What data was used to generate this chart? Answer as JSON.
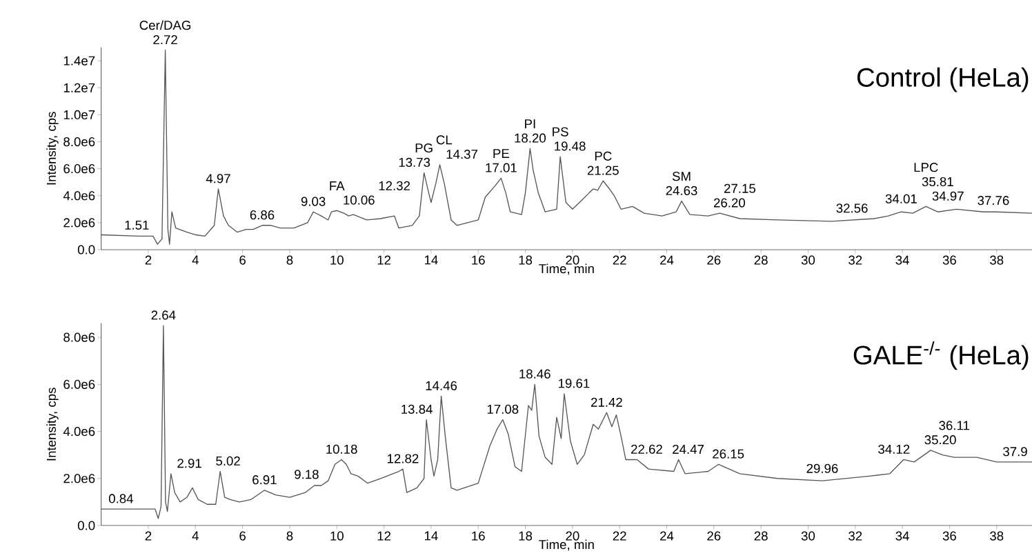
{
  "chart_data": [
    {
      "type": "line",
      "title": "Control (HeLa)",
      "xlabel": "Time, min",
      "ylabel": "Intensity, cps",
      "marker": "none",
      "xlim": [
        0,
        39.5
      ],
      "ylim": [
        0,
        15000000
      ],
      "xticks": [
        2,
        4,
        6,
        8,
        10,
        12,
        14,
        16,
        18,
        20,
        22,
        24,
        26,
        28,
        30,
        32,
        34,
        36,
        38
      ],
      "yticks": [
        {
          "value": 0,
          "label": "0.0"
        },
        {
          "value": 2000000,
          "label": "2.0e6"
        },
        {
          "value": 4000000,
          "label": "4.0e6"
        },
        {
          "value": 6000000,
          "label": "6.0e6"
        },
        {
          "value": 8000000,
          "label": "8.0e6"
        },
        {
          "value": 10000000,
          "label": "1.0e7"
        },
        {
          "value": 12000000,
          "label": "1.2e7"
        },
        {
          "value": 14000000,
          "label": "1.4e7"
        }
      ],
      "series": [
        {
          "color": "#555555",
          "x": [
            0,
            1.6,
            2.2,
            2.39,
            2.58,
            2.72,
            2.83,
            2.9,
            3.0,
            3.16,
            3.64,
            4.0,
            4.4,
            4.8,
            4.97,
            5.19,
            5.4,
            5.77,
            6.15,
            6.45,
            6.83,
            7.2,
            7.6,
            8.18,
            8.76,
            9.0,
            9.34,
            9.63,
            9.77,
            10.0,
            10.3,
            10.5,
            10.7,
            11.27,
            11.86,
            12.44,
            12.63,
            13.2,
            13.5,
            13.7,
            13.9,
            14.0,
            14.2,
            14.37,
            14.56,
            14.85,
            15.1,
            16.0,
            16.3,
            16.7,
            16.97,
            17.17,
            17.36,
            17.84,
            18.0,
            18.2,
            18.33,
            18.55,
            18.84,
            19.33,
            19.48,
            19.72,
            20.0,
            20.3,
            20.7,
            20.88,
            21.07,
            21.3,
            21.57,
            21.77,
            22.06,
            22.55,
            23.04,
            23.8,
            24.4,
            24.63,
            24.98,
            25.76,
            26.25,
            27.1,
            28.7,
            31.0,
            32.8,
            33.4,
            33.95,
            34.44,
            35.0,
            35.5,
            36.3,
            37.45,
            38.0,
            39.5
          ],
          "values": [
            1100000,
            1000000,
            1000000,
            400000,
            800000,
            14800000,
            1500000,
            400000,
            2800000,
            1600000,
            1300000,
            1100000,
            1000000,
            1800000,
            4500000,
            2500000,
            1800000,
            1300000,
            1500000,
            1500000,
            1800000,
            1800000,
            1600000,
            1600000,
            2000000,
            2800000,
            2500000,
            2200000,
            2800000,
            2900000,
            2700000,
            2500000,
            2600000,
            2200000,
            2300000,
            2500000,
            1600000,
            1800000,
            2500000,
            5700000,
            4200000,
            3500000,
            4900000,
            6300000,
            4900000,
            2200000,
            1800000,
            2200000,
            3900000,
            4700000,
            5300000,
            4200000,
            2800000,
            2600000,
            4200000,
            7500000,
            5900000,
            4200000,
            2800000,
            3000000,
            6900000,
            3500000,
            3000000,
            3500000,
            4200000,
            4500000,
            4400000,
            5100000,
            4500000,
            4000000,
            3000000,
            3200000,
            2700000,
            2500000,
            2800000,
            3600000,
            2600000,
            2500000,
            2700000,
            2300000,
            2200000,
            2100000,
            2300000,
            2500000,
            2800000,
            2700000,
            3200000,
            2800000,
            3000000,
            2800000,
            2800000,
            2700000
          ]
        }
      ],
      "annotations": [
        {
          "text": "1.51",
          "x": 1.51,
          "y": 1000000
        },
        {
          "text": "2.72",
          "x": 2.72,
          "y": 14800000
        },
        {
          "text": "4.97",
          "x": 4.97,
          "y": 4500000
        },
        {
          "text": "6.86",
          "x": 6.83,
          "y": 1800000
        },
        {
          "text": "9.03",
          "x": 9.0,
          "y": 2800000
        },
        {
          "text": "10.06",
          "x": 10.0,
          "y": 2900000
        },
        {
          "text": "12.32",
          "x": 12.44,
          "y": 2500000
        },
        {
          "text": "13.73",
          "x": 13.7,
          "y": 5700000
        },
        {
          "text": "14.37",
          "x": 14.37,
          "y": 6300000
        },
        {
          "text": "17.01",
          "x": 16.97,
          "y": 5300000
        },
        {
          "text": "18.20",
          "x": 18.2,
          "y": 7500000
        },
        {
          "text": "19.48",
          "x": 19.48,
          "y": 6900000
        },
        {
          "text": "21.25",
          "x": 21.3,
          "y": 5100000
        },
        {
          "text": "24.63",
          "x": 24.63,
          "y": 3600000
        },
        {
          "text": "26.20",
          "x": 26.25,
          "y": 2700000
        },
        {
          "text": "27.15",
          "x": 27.1,
          "y": 2300000
        },
        {
          "text": "32.56",
          "x": 32.8,
          "y": 2300000
        },
        {
          "text": "34.01",
          "x": 33.95,
          "y": 2800000
        },
        {
          "text": "34.97",
          "x": 35.0,
          "y": 3200000
        },
        {
          "text": "35.81",
          "x": 35.5,
          "y": 2800000
        },
        {
          "text": "37.76",
          "x": 37.45,
          "y": 2800000
        },
        {
          "text": "Cer/DAG",
          "x": 2.72,
          "y": 14800000
        },
        {
          "text": "FA",
          "x": 10.0,
          "y": 2900000
        },
        {
          "text": "PG",
          "x": 13.7,
          "y": 5700000
        },
        {
          "text": "CL",
          "x": 14.37,
          "y": 6300000
        },
        {
          "text": "PE",
          "x": 16.97,
          "y": 5300000
        },
        {
          "text": "PI",
          "x": 18.2,
          "y": 7500000
        },
        {
          "text": "PS",
          "x": 19.48,
          "y": 6900000
        },
        {
          "text": "PC",
          "x": 21.3,
          "y": 5100000
        },
        {
          "text": "SM",
          "x": 24.63,
          "y": 3600000
        },
        {
          "text": "LPC",
          "x": 35.0,
          "y": 3200000
        }
      ]
    },
    {
      "type": "line",
      "title": "GALE$^{-/-}$ (HeLa)",
      "xlabel": "Time, min",
      "ylabel": "Intensity, cps",
      "marker": "none",
      "xlim": [
        0,
        39.5
      ],
      "ylim": [
        0,
        8600000
      ],
      "xticks": [
        2,
        4,
        6,
        8,
        10,
        12,
        14,
        16,
        18,
        20,
        22,
        24,
        26,
        28,
        30,
        32,
        34,
        36,
        38
      ],
      "yticks": [
        {
          "value": 0,
          "label": "0.0"
        },
        {
          "value": 2000000,
          "label": "2.0e6"
        },
        {
          "value": 4000000,
          "label": "4.0e6"
        },
        {
          "value": 6000000,
          "label": "6.0e6"
        },
        {
          "value": 8000000,
          "label": "8.0e6"
        }
      ],
      "series": [
        {
          "color": "#555555",
          "x": [
            0,
            2.29,
            2.42,
            2.54,
            2.64,
            2.73,
            2.81,
            2.96,
            3.12,
            3.35,
            3.64,
            3.87,
            4.12,
            4.5,
            4.86,
            5.05,
            5.24,
            5.48,
            5.86,
            6.35,
            6.93,
            7.4,
            8.0,
            8.66,
            9.05,
            9.34,
            9.63,
            9.92,
            10.2,
            10.4,
            10.6,
            10.9,
            11.3,
            11.86,
            12.63,
            12.8,
            12.97,
            13.4,
            13.7,
            13.8,
            14.0,
            14.12,
            14.28,
            14.43,
            14.6,
            14.85,
            15.1,
            16.0,
            16.5,
            16.8,
            17.04,
            17.27,
            17.56,
            17.84,
            18.13,
            18.27,
            18.4,
            18.58,
            18.84,
            19.13,
            19.33,
            19.52,
            19.65,
            19.91,
            20.2,
            20.5,
            20.88,
            21.1,
            21.45,
            21.67,
            21.86,
            22.06,
            22.26,
            22.74,
            23.23,
            24.3,
            24.5,
            24.78,
            25.76,
            26.2,
            27.1,
            28.7,
            30.6,
            32.6,
            33.46,
            34.05,
            34.5,
            35.2,
            35.7,
            36.2,
            37.16,
            38.0,
            39.5
          ],
          "values": [
            700000,
            700000,
            300000,
            800000,
            8500000,
            1000000,
            600000,
            2200000,
            1400000,
            1000000,
            1200000,
            1600000,
            1100000,
            900000,
            900000,
            2300000,
            1200000,
            1100000,
            1000000,
            1100000,
            1500000,
            1300000,
            1200000,
            1400000,
            1700000,
            1700000,
            1900000,
            2600000,
            2800000,
            2600000,
            2200000,
            2100000,
            1800000,
            2000000,
            2300000,
            2400000,
            1400000,
            1600000,
            2000000,
            4500000,
            2800000,
            2100000,
            2800000,
            5500000,
            3800000,
            1600000,
            1500000,
            1800000,
            3400000,
            4100000,
            4500000,
            3900000,
            2500000,
            2300000,
            5100000,
            4900000,
            6000000,
            3800000,
            2900000,
            2600000,
            4600000,
            3700000,
            5600000,
            3600000,
            2600000,
            3000000,
            4300000,
            4100000,
            4800000,
            4200000,
            4700000,
            3800000,
            2800000,
            2800000,
            2400000,
            2300000,
            2800000,
            2200000,
            2300000,
            2600000,
            2200000,
            2000000,
            1900000,
            2100000,
            2200000,
            2800000,
            2700000,
            3200000,
            3000000,
            2900000,
            2900000,
            2700000,
            2700000
          ]
        }
      ],
      "annotations": [
        {
          "text": "0.84",
          "x": 0.84,
          "y": 700000
        },
        {
          "text": "2.64",
          "x": 2.64,
          "y": 8500000
        },
        {
          "text": "2.91",
          "x": 2.96,
          "y": 2200000
        },
        {
          "text": "5.02",
          "x": 5.05,
          "y": 2300000
        },
        {
          "text": "6.91",
          "x": 6.93,
          "y": 1500000
        },
        {
          "text": "9.18",
          "x": 9.05,
          "y": 1700000
        },
        {
          "text": "10.18",
          "x": 10.2,
          "y": 2800000
        },
        {
          "text": "12.82",
          "x": 12.8,
          "y": 2400000
        },
        {
          "text": "13.84",
          "x": 13.8,
          "y": 4500000
        },
        {
          "text": "14.46",
          "x": 14.43,
          "y": 5500000
        },
        {
          "text": "17.08",
          "x": 17.04,
          "y": 4500000
        },
        {
          "text": "18.46",
          "x": 18.4,
          "y": 6000000
        },
        {
          "text": "19.61",
          "x": 19.65,
          "y": 5600000
        },
        {
          "text": "21.42",
          "x": 21.45,
          "y": 4800000
        },
        {
          "text": "22.62",
          "x": 22.74,
          "y": 2800000
        },
        {
          "text": "24.47",
          "x": 24.5,
          "y": 2800000
        },
        {
          "text": "26.15",
          "x": 26.2,
          "y": 2600000
        },
        {
          "text": "29.96",
          "x": 30.6,
          "y": 1900000
        },
        {
          "text": "34.12",
          "x": 34.05,
          "y": 2800000
        },
        {
          "text": "35.20",
          "x": 35.2,
          "y": 3200000
        },
        {
          "text": "36.11",
          "x": 36.2,
          "y": 2900000
        },
        {
          "text": "37.9",
          "x": 38.0,
          "y": 2700000
        }
      ]
    }
  ]
}
